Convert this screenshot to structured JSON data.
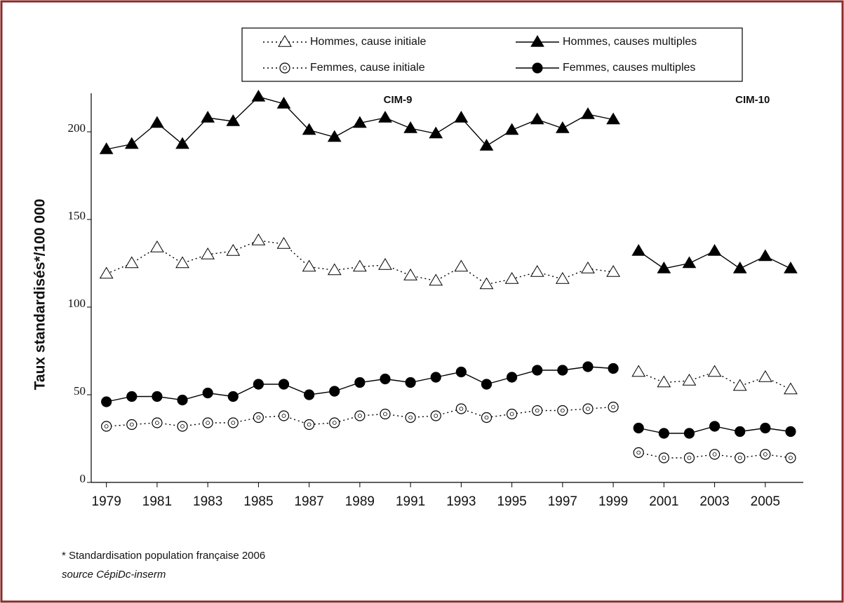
{
  "chart_data": {
    "type": "line",
    "ylabel": "Taux standardisés*/100 000",
    "x": [
      1979,
      1980,
      1981,
      1982,
      1983,
      1984,
      1985,
      1986,
      1987,
      1988,
      1989,
      1990,
      1991,
      1992,
      1993,
      1994,
      1995,
      1996,
      1997,
      1998,
      1999,
      2000,
      2001,
      2002,
      2003,
      2004,
      2005,
      2006
    ],
    "xlim": [
      1978.4,
      2006.5
    ],
    "xticks": [
      1979,
      1981,
      1983,
      1985,
      1987,
      1989,
      1991,
      1993,
      1995,
      1997,
      1999,
      2001,
      2003,
      2005
    ],
    "ylim": [
      0,
      222
    ],
    "yticks": [
      0,
      50,
      100,
      150,
      200
    ],
    "break_after": 1999,
    "series": [
      {
        "name": "Hommes, cause initiale",
        "color": "#000000",
        "dash": "dotted",
        "marker": "triangle-open",
        "values": [
          119,
          125,
          134,
          125,
          130,
          132,
          138,
          136,
          123,
          121,
          123,
          124,
          118,
          115,
          123,
          113,
          116,
          120,
          116,
          122,
          120,
          63,
          57,
          58,
          63,
          55,
          60,
          53
        ]
      },
      {
        "name": "Hommes, causes multiples",
        "color": "#000000",
        "dash": "solid",
        "marker": "triangle-filled",
        "values": [
          190,
          193,
          205,
          193,
          208,
          206,
          220,
          216,
          201,
          197,
          205,
          208,
          202,
          199,
          208,
          192,
          201,
          207,
          202,
          210,
          207,
          132,
          122,
          125,
          132,
          122,
          129,
          122
        ]
      },
      {
        "name": "Femmes, cause initiale",
        "color": "#000000",
        "dash": "dotted",
        "marker": "circle-open",
        "values": [
          32,
          33,
          34,
          32,
          34,
          34,
          37,
          38,
          33,
          34,
          38,
          39,
          37,
          38,
          42,
          37,
          39,
          41,
          41,
          42,
          43,
          17,
          14,
          14,
          16,
          14,
          16,
          14
        ]
      },
      {
        "name": "Femmes, causes multiples",
        "color": "#000000",
        "dash": "solid",
        "marker": "circle-filled",
        "values": [
          46,
          49,
          49,
          47,
          51,
          49,
          56,
          56,
          50,
          52,
          57,
          59,
          57,
          60,
          63,
          56,
          60,
          64,
          64,
          66,
          65,
          31,
          28,
          28,
          32,
          29,
          31,
          29
        ]
      }
    ],
    "annotations": [
      {
        "text": "CIM-9",
        "x": 1990.5,
        "y": 218
      },
      {
        "text": "CIM-10",
        "x": 2004.5,
        "y": 218
      }
    ],
    "footnotes": [
      "* Standardisation population française 2006",
      "source CépiDc-inserm"
    ]
  }
}
